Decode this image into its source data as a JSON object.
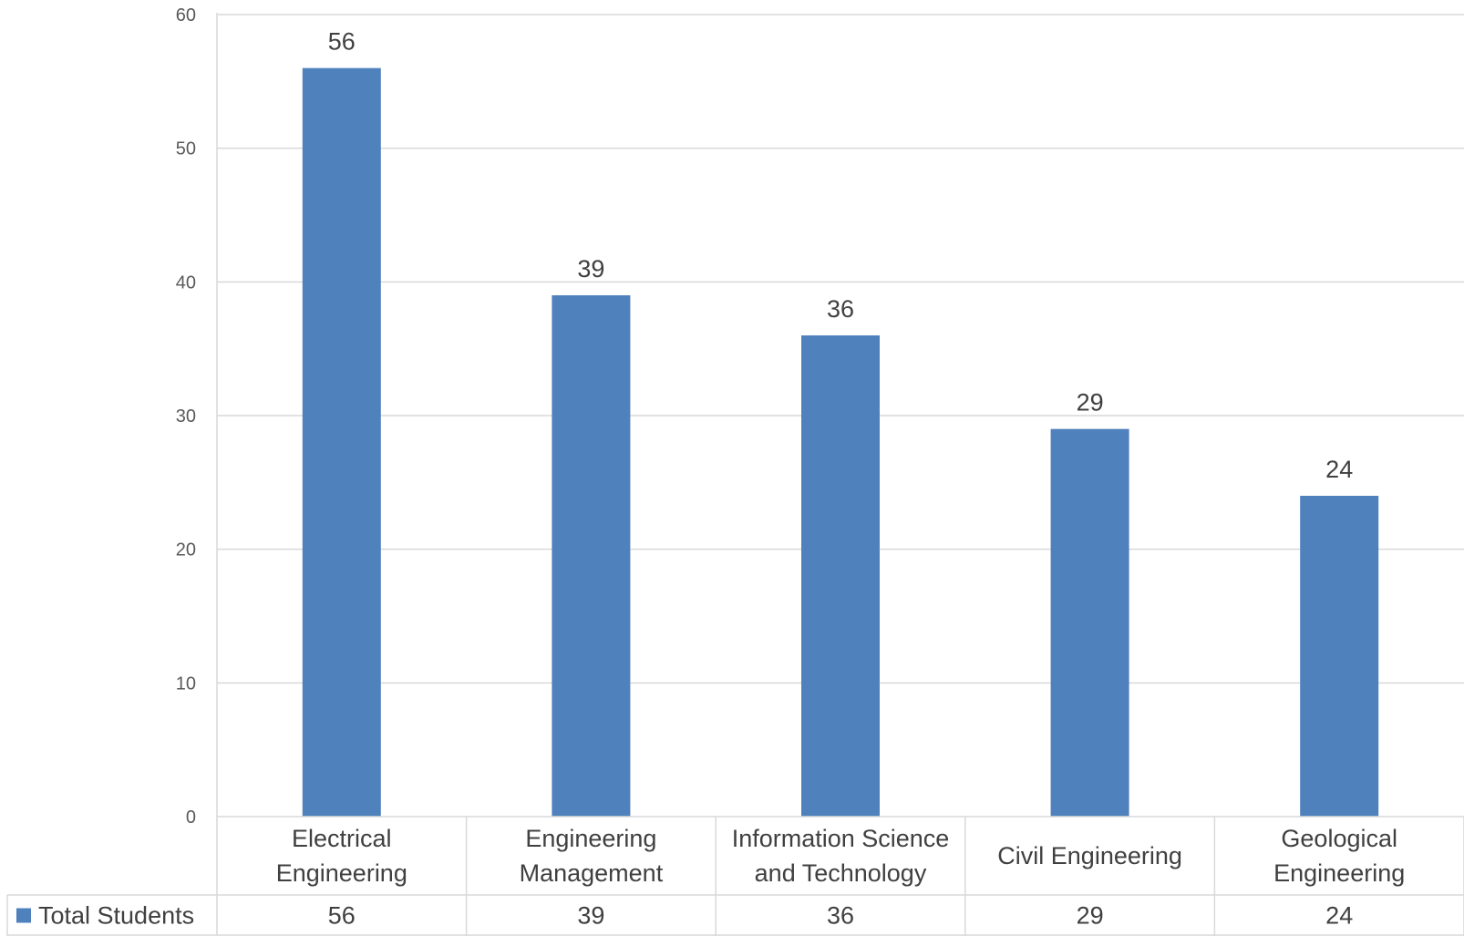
{
  "chart_data": {
    "type": "bar",
    "categories": [
      [
        "Electrical",
        "Engineering"
      ],
      [
        "Engineering",
        "Management"
      ],
      [
        "Information Science",
        "and Technology"
      ],
      [
        "Civil Engineering"
      ],
      [
        "Geological",
        "Engineering"
      ]
    ],
    "series": [
      {
        "name": "Total Students",
        "values": [
          56,
          39,
          36,
          29,
          24
        ],
        "color": "#4f81bd"
      }
    ],
    "ylim": [
      0,
      60
    ],
    "yticks": [
      0,
      10,
      20,
      30,
      40,
      50,
      60
    ],
    "grid": true,
    "data_labels": true,
    "data_table": true,
    "legend": "in data table"
  }
}
